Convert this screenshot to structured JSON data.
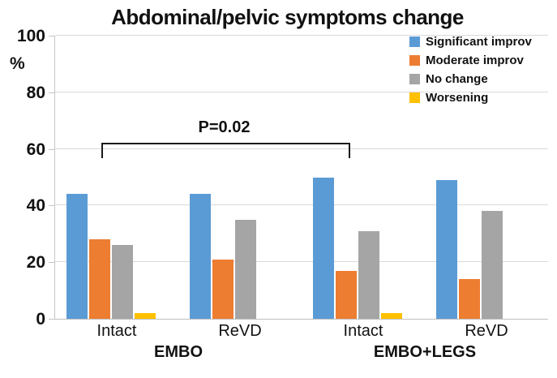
{
  "title": "Abdominal/pelvic symptoms change",
  "chart_data": {
    "type": "bar",
    "title": "Abdominal/pelvic symptoms change",
    "xlabel": "",
    "ylabel": "%",
    "ylim": [
      0,
      100
    ],
    "y_ticks": [
      0,
      20,
      40,
      60,
      80,
      100
    ],
    "grid": true,
    "legend_position": "top-right",
    "categories": [
      "Intact",
      "ReVD",
      "Intact",
      "ReVD"
    ],
    "group_labels": [
      "EMBO",
      "EMBO+LEGS"
    ],
    "series": [
      {
        "name": "Significant improv",
        "color": "#5B9BD5",
        "values": [
          44,
          44,
          50,
          49
        ]
      },
      {
        "name": "Moderate improv",
        "color": "#ED7D31",
        "values": [
          28,
          21,
          17,
          14
        ]
      },
      {
        "name": "No change",
        "color": "#A5A5A5",
        "values": [
          26,
          35,
          31,
          38
        ]
      },
      {
        "name": "Worsening",
        "color": "#FFC000",
        "values": [
          2,
          0,
          2,
          0
        ]
      }
    ],
    "annotation": {
      "text": "P=0.02",
      "spans": [
        "EMBO Intact",
        "EMBO+LEGS Intact"
      ]
    },
    "colors": {
      "gridline": "#D9D9D9",
      "baseline": "#BFBFBF",
      "axis": "#C6C6C6",
      "text": "#111111"
    }
  }
}
